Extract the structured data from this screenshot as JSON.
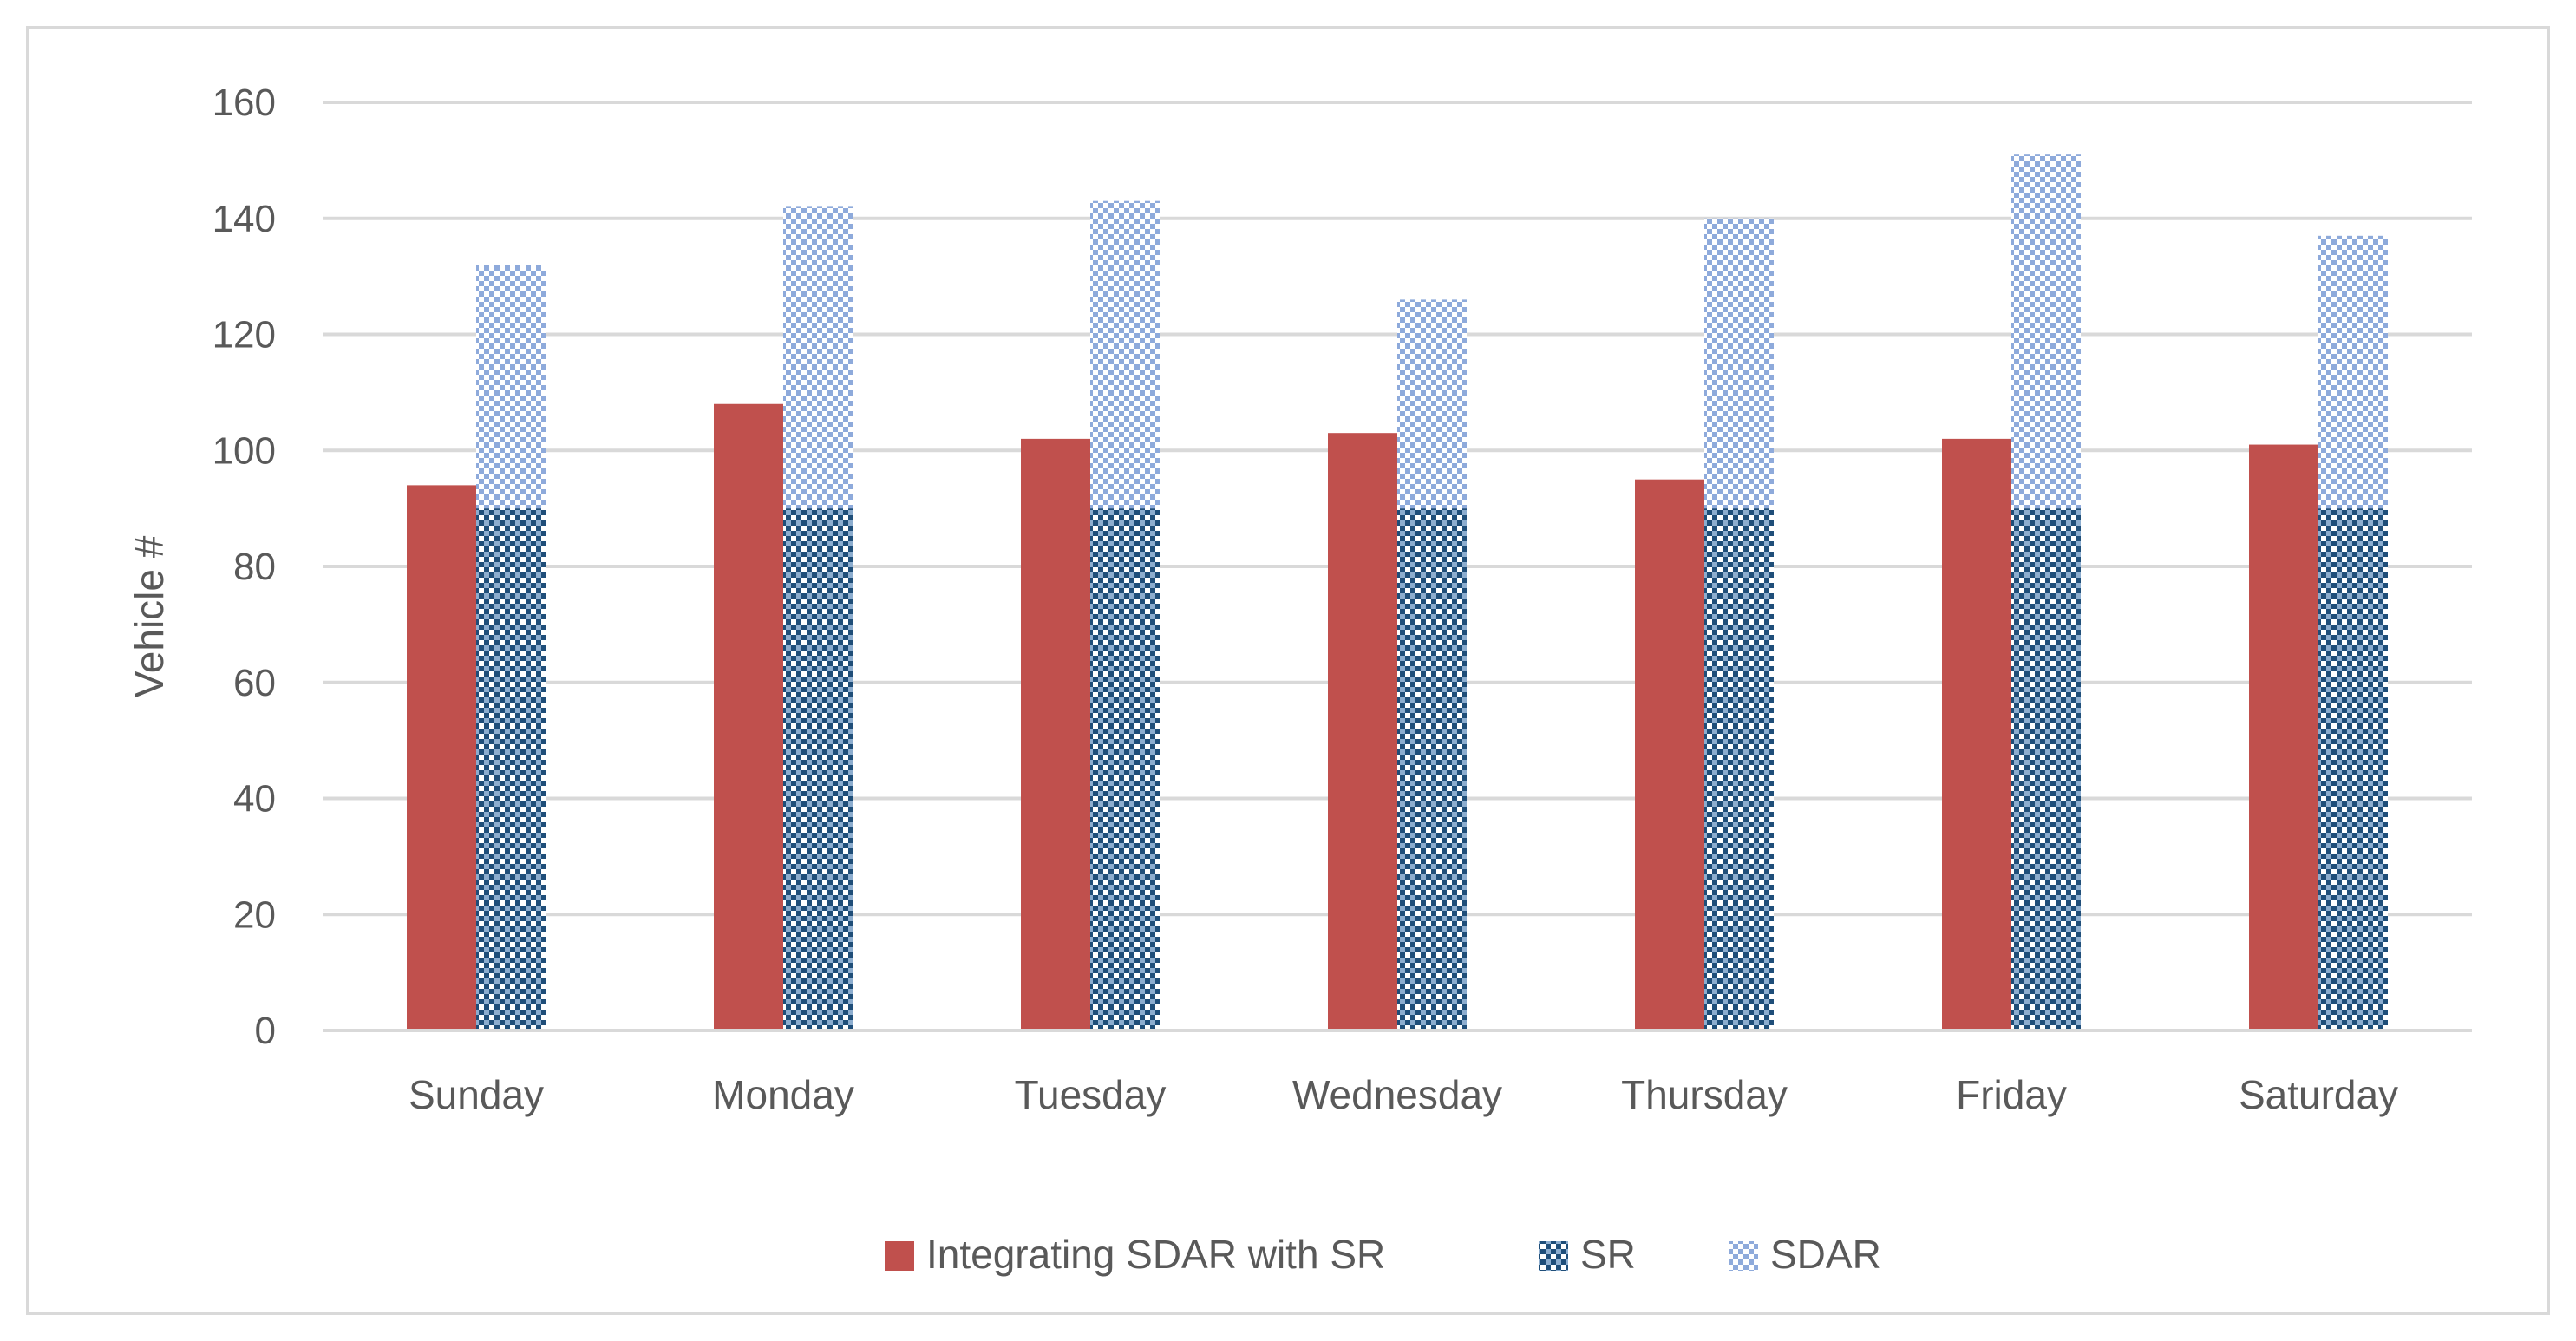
{
  "chart_data": {
    "type": "bar",
    "title": "",
    "xlabel": "",
    "ylabel": "Vehicle #",
    "ylim": [
      0,
      160
    ],
    "yticks": [
      0,
      20,
      40,
      60,
      80,
      100,
      120,
      140,
      160
    ],
    "grid": true,
    "legend_position": "bottom",
    "categories": [
      "Sunday",
      "Monday",
      "Tuesday",
      "Wednesday",
      "Thursday",
      "Friday",
      "Saturday"
    ],
    "series": [
      {
        "name": "Integrating SDAR with SR",
        "values": [
          94,
          108,
          102,
          103,
          95,
          102,
          101
        ],
        "color": "#c0504d",
        "pattern": "solid"
      },
      {
        "name": "SR",
        "values": [
          90,
          90,
          90,
          90,
          90,
          90,
          90
        ],
        "color": "#1f4e79",
        "pattern": "checker-dark",
        "stack": "right"
      },
      {
        "name": "SDAR",
        "values": [
          42,
          52,
          53,
          36,
          50,
          61,
          47
        ],
        "color": "#8eaadb",
        "pattern": "checker-light",
        "stack": "right"
      }
    ]
  }
}
